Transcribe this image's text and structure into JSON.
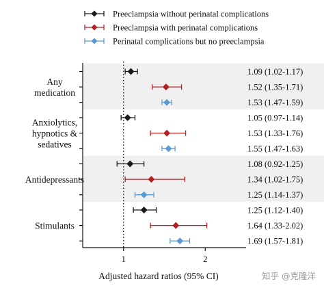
{
  "chart_data": {
    "type": "forest",
    "xlabel": "Adjusted hazard ratios (95% CI)",
    "xlim": [
      0.5,
      2.5
    ],
    "xticks": [
      1,
      2
    ],
    "reference_line": 1,
    "legend_position": "top",
    "series": [
      {
        "name": "Preeclampsia without perinatal complications",
        "color": "#1a1a1a",
        "marker": "diamond"
      },
      {
        "name": "Preeclampsia with perinatal complications",
        "color": "#b22222",
        "marker": "diamond"
      },
      {
        "name": "Perinatal complications but no preeclampsia",
        "color": "#5b9bd5",
        "marker": "diamond"
      }
    ],
    "groups": [
      {
        "label_lines": [
          "Any",
          "medication"
        ],
        "shaded": true,
        "rows": [
          {
            "series": 0,
            "hr": 1.09,
            "lo": 1.02,
            "hi": 1.17,
            "text": "1.09 (1.02-1.17)"
          },
          {
            "series": 1,
            "hr": 1.52,
            "lo": 1.35,
            "hi": 1.71,
            "text": "1.52 (1.35-1.71)"
          },
          {
            "series": 2,
            "hr": 1.53,
            "lo": 1.47,
            "hi": 1.59,
            "text": "1.53 (1.47-1.59)"
          }
        ]
      },
      {
        "label_lines": [
          "Anxiolytics,",
          "hypnotics &",
          "sedatives"
        ],
        "shaded": false,
        "rows": [
          {
            "series": 0,
            "hr": 1.05,
            "lo": 0.97,
            "hi": 1.14,
            "text": "1.05 (0.97-1.14)"
          },
          {
            "series": 1,
            "hr": 1.53,
            "lo": 1.33,
            "hi": 1.76,
            "text": "1.53 (1.33-1.76)"
          },
          {
            "series": 2,
            "hr": 1.55,
            "lo": 1.47,
            "hi": 1.63,
            "text": "1.55 (1.47-1.63)"
          }
        ]
      },
      {
        "label_lines": [
          "Antidepressants"
        ],
        "shaded": true,
        "rows": [
          {
            "series": 0,
            "hr": 1.08,
            "lo": 0.92,
            "hi": 1.25,
            "text": "1.08 (0.92-1.25)"
          },
          {
            "series": 1,
            "hr": 1.34,
            "lo": 1.02,
            "hi": 1.75,
            "text": "1.34 (1.02-1.75)"
          },
          {
            "series": 2,
            "hr": 1.25,
            "lo": 1.14,
            "hi": 1.37,
            "text": "1.25 (1.14-1.37)"
          }
        ]
      },
      {
        "label_lines": [
          "Stimulants"
        ],
        "shaded": false,
        "rows": [
          {
            "series": 0,
            "hr": 1.25,
            "lo": 1.12,
            "hi": 1.4,
            "text": "1.25 (1.12-1.40)"
          },
          {
            "series": 1,
            "hr": 1.64,
            "lo": 1.33,
            "hi": 2.02,
            "text": "1.64 (1.33-2.02)"
          },
          {
            "series": 2,
            "hr": 1.69,
            "lo": 1.57,
            "hi": 1.81,
            "text": "1.69 (1.57-1.81)"
          }
        ]
      }
    ],
    "shading_color": "#f0f0f0"
  },
  "watermark": "知乎 @克隆洋"
}
